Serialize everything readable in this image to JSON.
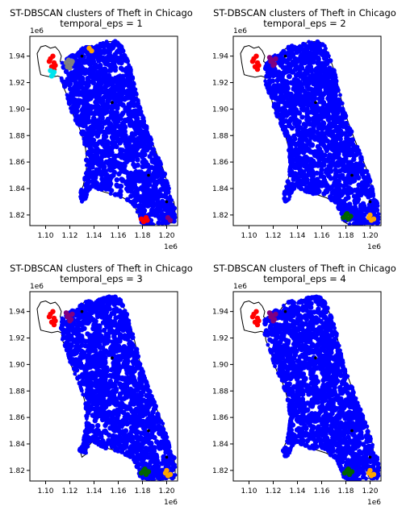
{
  "chart_data": [
    {
      "type": "scatter",
      "title": "ST-DBSCAN clusters of Theft in Chicago",
      "subtitle": "temporal_eps = 1",
      "x_offset_label": "1e6",
      "y_offset_label": "1e6",
      "xticks": [
        1.1,
        1.12,
        1.14,
        1.16,
        1.18,
        1.2
      ],
      "xtick_labels": [
        "1.10",
        "1.12",
        "1.14",
        "1.16",
        "1.18",
        "1.20"
      ],
      "yticks": [
        1.82,
        1.84,
        1.86,
        1.88,
        1.9,
        1.92,
        1.94
      ],
      "ytick_labels": [
        "1.82",
        "1.84",
        "1.86",
        "1.88",
        "1.90",
        "1.92",
        "1.94"
      ],
      "xlim": [
        1.087,
        1.209
      ],
      "ylim": [
        1.812,
        1.955
      ],
      "grid": false,
      "series": [
        {
          "color": "#0000ff",
          "region": "city"
        },
        {
          "color": "#ff0000",
          "x": [
            1.104,
            1.106,
            1.107,
            1.108,
            1.105,
            1.107,
            1.103,
            1.106
          ],
          "y": [
            1.938,
            1.94,
            1.935,
            1.933,
            1.932,
            1.93,
            1.936,
            1.929
          ]
        },
        {
          "color": "#00e5ee",
          "x": [
            1.104,
            1.106,
            1.107,
            1.105
          ],
          "y": [
            1.929,
            1.926,
            1.928,
            1.925
          ]
        },
        {
          "color": "#808080",
          "x": [
            1.117,
            1.119,
            1.121,
            1.118,
            1.122,
            1.12
          ],
          "y": [
            1.935,
            1.937,
            1.934,
            1.932,
            1.936,
            1.931
          ]
        },
        {
          "color": "#ffa500",
          "x": [
            1.136,
            1.138
          ],
          "y": [
            1.946,
            1.944
          ]
        },
        {
          "color": "#ff0000",
          "x": [
            1.179,
            1.181,
            1.183,
            1.184
          ],
          "y": [
            1.817,
            1.815,
            1.818,
            1.816
          ]
        },
        {
          "color": "#800080",
          "x": [
            1.201,
            1.203
          ],
          "y": [
            1.818,
            1.816
          ]
        },
        {
          "color": "#000000",
          "x": [
            1.13,
            1.155,
            1.185,
            1.2
          ],
          "y": [
            1.94,
            1.905,
            1.85,
            1.83
          ]
        }
      ]
    },
    {
      "type": "scatter",
      "title": "ST-DBSCAN clusters of Theft in Chicago",
      "subtitle": "temporal_eps = 2",
      "x_offset_label": "1e6",
      "y_offset_label": "1e6",
      "xticks": [
        1.1,
        1.12,
        1.14,
        1.16,
        1.18,
        1.2
      ],
      "xtick_labels": [
        "1.10",
        "1.12",
        "1.14",
        "1.16",
        "1.18",
        "1.20"
      ],
      "yticks": [
        1.82,
        1.84,
        1.86,
        1.88,
        1.9,
        1.92,
        1.94
      ],
      "ytick_labels": [
        "1.82",
        "1.84",
        "1.86",
        "1.88",
        "1.90",
        "1.92",
        "1.94"
      ],
      "xlim": [
        1.087,
        1.209
      ],
      "ylim": [
        1.812,
        1.955
      ],
      "grid": false,
      "series": [
        {
          "color": "#0000ff",
          "region": "city"
        },
        {
          "color": "#ff0000",
          "x": [
            1.104,
            1.106,
            1.107,
            1.108,
            1.105,
            1.107,
            1.103
          ],
          "y": [
            1.938,
            1.94,
            1.935,
            1.933,
            1.932,
            1.93,
            1.936
          ]
        },
        {
          "color": "#800080",
          "x": [
            1.117,
            1.119,
            1.121,
            1.118,
            1.122,
            1.12
          ],
          "y": [
            1.939,
            1.937,
            1.934,
            1.936,
            1.938,
            1.933
          ]
        },
        {
          "color": "#006400",
          "x": [
            1.178,
            1.18,
            1.182,
            1.184,
            1.181
          ],
          "y": [
            1.818,
            1.82,
            1.817,
            1.819,
            1.821
          ]
        },
        {
          "color": "#ffa500",
          "x": [
            1.199,
            1.201,
            1.203,
            1.2
          ],
          "y": [
            1.818,
            1.816,
            1.817,
            1.82
          ]
        },
        {
          "color": "#000000",
          "x": [
            1.13,
            1.155,
            1.185,
            1.2
          ],
          "y": [
            1.94,
            1.905,
            1.85,
            1.83
          ]
        }
      ]
    },
    {
      "type": "scatter",
      "title": "ST-DBSCAN clusters of Theft in Chicago",
      "subtitle": "temporal_eps = 3",
      "x_offset_label": "1e6",
      "y_offset_label": "1e6",
      "xticks": [
        1.1,
        1.12,
        1.14,
        1.16,
        1.18,
        1.2
      ],
      "xtick_labels": [
        "1.10",
        "1.12",
        "1.14",
        "1.16",
        "1.18",
        "1.20"
      ],
      "yticks": [
        1.82,
        1.84,
        1.86,
        1.88,
        1.9,
        1.92,
        1.94
      ],
      "ytick_labels": [
        "1.82",
        "1.84",
        "1.86",
        "1.88",
        "1.90",
        "1.92",
        "1.94"
      ],
      "xlim": [
        1.087,
        1.209
      ],
      "ylim": [
        1.812,
        1.955
      ],
      "grid": false,
      "series": [
        {
          "color": "#0000ff",
          "region": "city"
        },
        {
          "color": "#ff0000",
          "x": [
            1.104,
            1.106,
            1.107,
            1.108,
            1.105,
            1.107,
            1.103
          ],
          "y": [
            1.938,
            1.94,
            1.935,
            1.933,
            1.932,
            1.93,
            1.936
          ]
        },
        {
          "color": "#800080",
          "x": [
            1.117,
            1.119,
            1.121,
            1.118,
            1.122,
            1.12
          ],
          "y": [
            1.939,
            1.937,
            1.934,
            1.936,
            1.938,
            1.933
          ]
        },
        {
          "color": "#006400",
          "x": [
            1.179,
            1.181,
            1.183,
            1.185,
            1.182
          ],
          "y": [
            1.818,
            1.82,
            1.817,
            1.819,
            1.821
          ]
        },
        {
          "color": "#ffa500",
          "x": [
            1.199,
            1.201,
            1.203,
            1.2
          ],
          "y": [
            1.818,
            1.816,
            1.817,
            1.82
          ]
        },
        {
          "color": "#000000",
          "x": [
            1.13,
            1.155,
            1.185,
            1.2
          ],
          "y": [
            1.94,
            1.905,
            1.85,
            1.83
          ]
        }
      ]
    },
    {
      "type": "scatter",
      "title": "ST-DBSCAN clusters of Theft in Chicago",
      "subtitle": "temporal_eps = 4",
      "x_offset_label": "1e6",
      "y_offset_label": "1e6",
      "xticks": [
        1.1,
        1.12,
        1.14,
        1.16,
        1.18,
        1.2
      ],
      "xtick_labels": [
        "1.10",
        "1.12",
        "1.14",
        "1.16",
        "1.18",
        "1.20"
      ],
      "yticks": [
        1.82,
        1.84,
        1.86,
        1.88,
        1.9,
        1.92,
        1.94
      ],
      "ytick_labels": [
        "1.82",
        "1.84",
        "1.86",
        "1.88",
        "1.90",
        "1.92",
        "1.94"
      ],
      "xlim": [
        1.087,
        1.209
      ],
      "ylim": [
        1.812,
        1.955
      ],
      "grid": false,
      "series": [
        {
          "color": "#0000ff",
          "region": "city"
        },
        {
          "color": "#ff0000",
          "x": [
            1.104,
            1.106,
            1.107,
            1.108,
            1.105,
            1.107,
            1.103
          ],
          "y": [
            1.938,
            1.94,
            1.935,
            1.933,
            1.932,
            1.93,
            1.936
          ]
        },
        {
          "color": "#800080",
          "x": [
            1.117,
            1.119,
            1.121,
            1.118,
            1.122,
            1.12
          ],
          "y": [
            1.939,
            1.937,
            1.934,
            1.936,
            1.938,
            1.933
          ]
        },
        {
          "color": "#006400",
          "x": [
            1.179,
            1.181,
            1.183,
            1.185,
            1.182
          ],
          "y": [
            1.818,
            1.82,
            1.817,
            1.819,
            1.821
          ]
        },
        {
          "color": "#ffa500",
          "x": [
            1.199,
            1.201,
            1.203,
            1.2
          ],
          "y": [
            1.818,
            1.816,
            1.817,
            1.82
          ]
        },
        {
          "color": "#000000",
          "x": [
            1.13,
            1.155,
            1.185,
            1.2
          ],
          "y": [
            1.94,
            1.905,
            1.85,
            1.83
          ]
        }
      ]
    }
  ]
}
